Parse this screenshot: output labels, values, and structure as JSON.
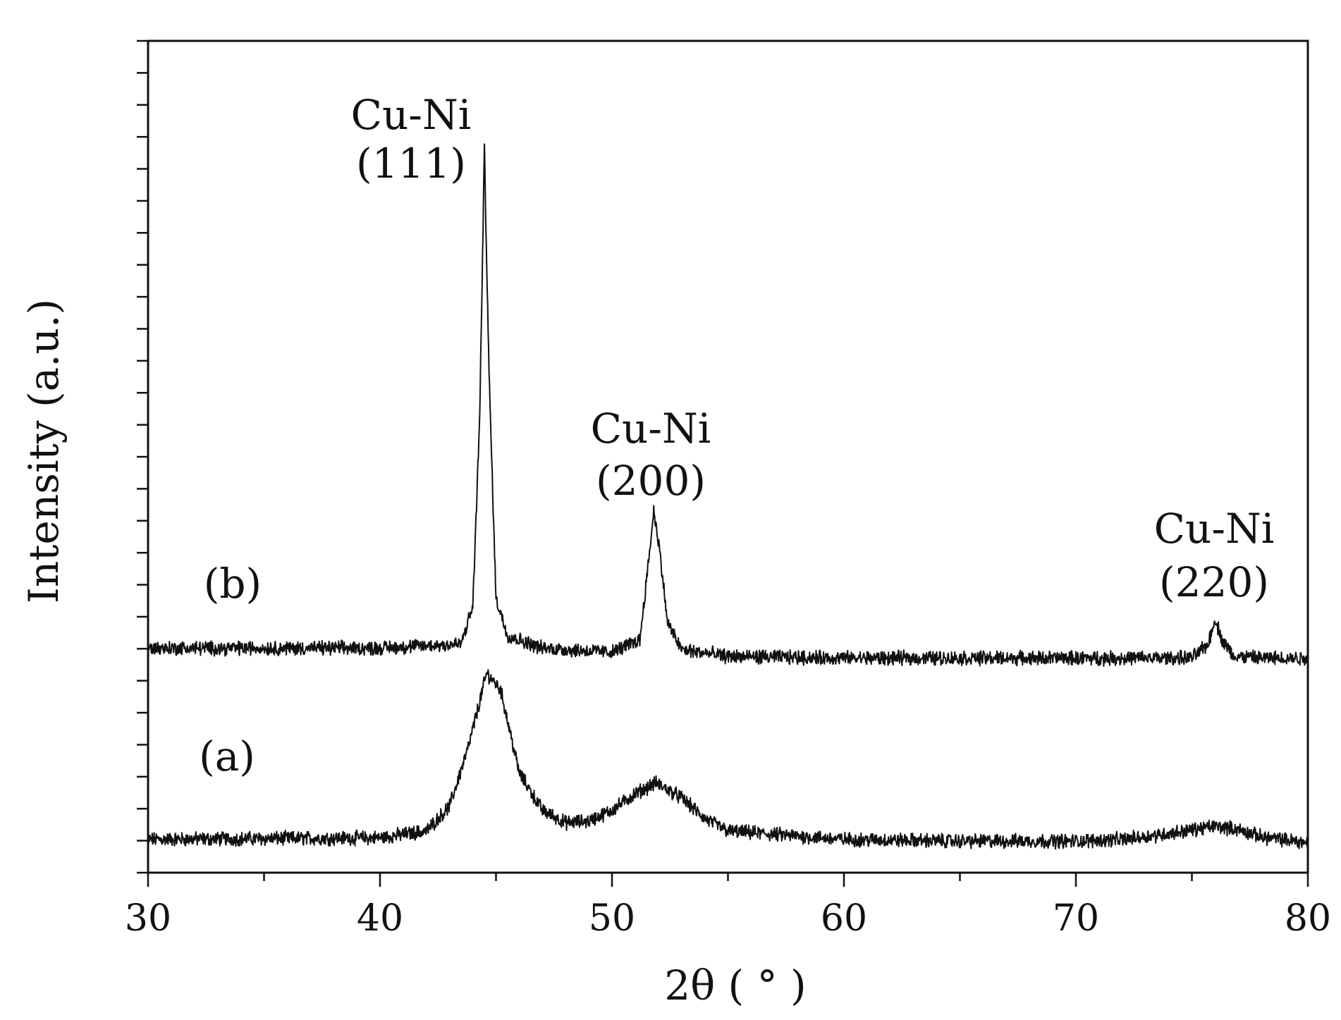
{
  "chart_data": {
    "type": "line",
    "xlabel": "2θ ( ° )",
    "ylabel": "Intensity (a.u.)",
    "xlim": [
      30,
      80
    ],
    "x_ticks": [
      30,
      40,
      50,
      60,
      70,
      80
    ],
    "x_ticks_minor": [
      35,
      45,
      55,
      65,
      75
    ],
    "ylim": [
      0,
      100
    ],
    "y_tick_labels": false,
    "grid": false,
    "legend": "none",
    "line_color": "#111111",
    "series": [
      {
        "name": "(a)",
        "baseline": 4,
        "x": [
          30,
          40,
          42,
          43,
          43.8,
          44.6,
          45.2,
          46,
          47,
          48,
          49,
          50,
          51,
          51.9,
          53,
          54,
          55,
          60,
          65,
          70,
          72,
          74,
          76,
          77,
          78,
          80
        ],
        "y": [
          4.0,
          4.2,
          5.0,
          8.0,
          15.0,
          24.0,
          22.0,
          12.0,
          7.5,
          6.0,
          6.2,
          7.5,
          9.5,
          10.8,
          9.0,
          6.5,
          5.0,
          4.0,
          3.8,
          3.8,
          4.0,
          4.7,
          5.6,
          5.2,
          4.3,
          3.6
        ]
      },
      {
        "name": "(b)",
        "baseline": 27,
        "x": [
          30,
          40,
          43.5,
          44.0,
          44.3,
          44.5,
          44.7,
          45.0,
          45.5,
          47,
          50,
          51.2,
          51.6,
          51.8,
          52.0,
          52.4,
          53,
          55,
          60,
          70,
          75,
          75.7,
          76.0,
          76.3,
          76.8,
          78,
          80
        ],
        "y": [
          27.0,
          27.0,
          27.5,
          32.0,
          55.0,
          87.0,
          60.0,
          33.0,
          28.5,
          27.0,
          26.5,
          28.0,
          38.0,
          43.5,
          40.0,
          30.0,
          26.8,
          26.0,
          25.8,
          25.8,
          25.8,
          27.5,
          30.5,
          28.0,
          26.0,
          25.8,
          25.8
        ]
      }
    ],
    "annotations": [
      {
        "id": "ann-111",
        "line1": "Cu-Ni",
        "line2": "(111)",
        "x": 44.5,
        "series": "(b)"
      },
      {
        "id": "ann-200",
        "line1": "Cu-Ni",
        "line2": "(200)",
        "x": 51.8,
        "series": "(b)"
      },
      {
        "id": "ann-220",
        "line1": "Cu-Ni",
        "line2": "(220)",
        "x": 76.0,
        "series": "(b)"
      }
    ]
  }
}
